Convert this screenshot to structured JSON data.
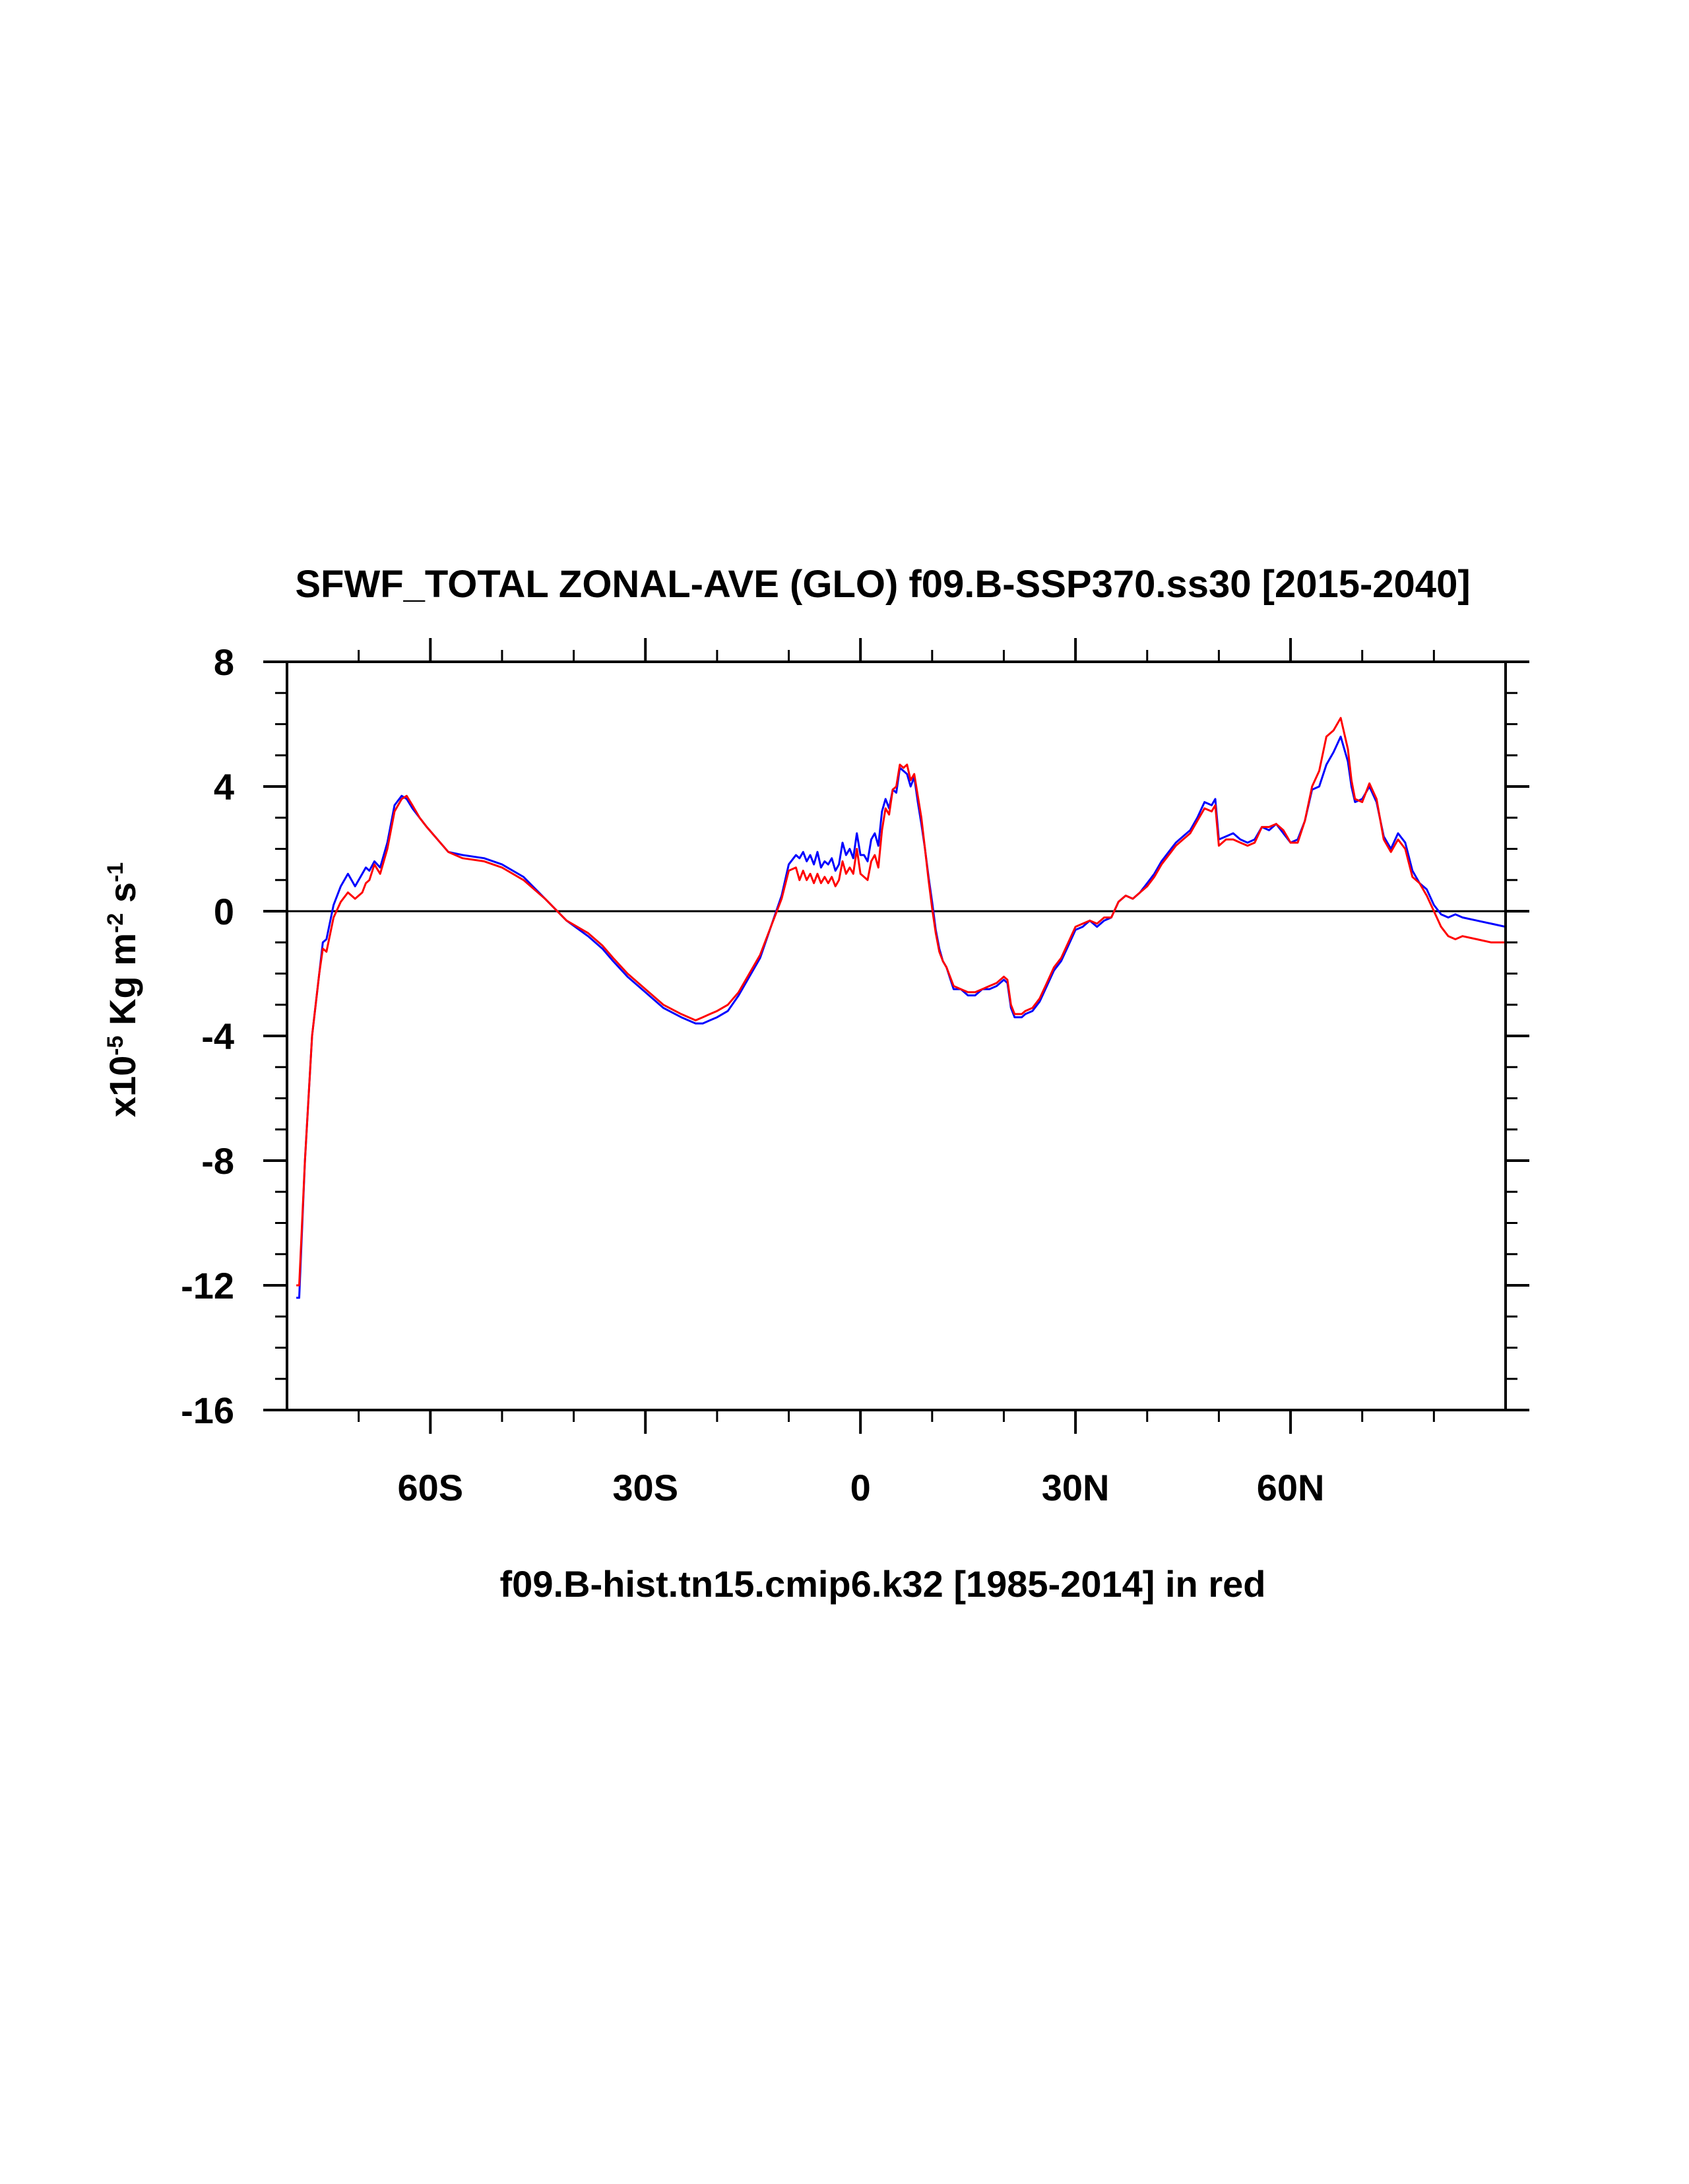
{
  "chart_data": {
    "type": "line",
    "title": "SFWF_TOTAL ZONAL-AVE (GLO) f09.B-SSP370.ss30 [2015-2040]",
    "xlabel": "f09.B-hist.tn15.cmip6.k32 [1985-2014] in red",
    "ylabel": {
      "prefix": "x10",
      "exp1": "-5",
      "mid": " Kg m",
      "exp2": "-2",
      "mid2": " s",
      "exp3": "-1"
    },
    "xlim": [
      -80,
      90
    ],
    "ylim": [
      -16,
      8
    ],
    "xticks": [
      {
        "value": -60,
        "label": "60S"
      },
      {
        "value": -30,
        "label": "30S"
      },
      {
        "value": 0,
        "label": "0"
      },
      {
        "value": 30,
        "label": "30N"
      },
      {
        "value": 60,
        "label": "60N"
      }
    ],
    "yticks": [
      {
        "value": 8,
        "label": "8"
      },
      {
        "value": 4,
        "label": "4"
      },
      {
        "value": 0,
        "label": "0"
      },
      {
        "value": -4,
        "label": "-4"
      },
      {
        "value": -8,
        "label": "-8"
      },
      {
        "value": -12,
        "label": "-12"
      },
      {
        "value": -16,
        "label": "-16"
      }
    ],
    "zero_line": true,
    "series": [
      {
        "color": "#0000ff",
        "x": [
          -78.7,
          -78.3,
          -77.5,
          -76.5,
          -75.5,
          -75.0,
          -74.5,
          -73.5,
          -72.5,
          -71.5,
          -70.5,
          -69.5,
          -69.0,
          -68.5,
          -67.8,
          -67.0,
          -66.0,
          -65.0,
          -64.0,
          -63.3,
          -62.5,
          -61.5,
          -60.5,
          -59.0,
          -57.5,
          -55.5,
          -52.5,
          -50.0,
          -47.0,
          -44.0,
          -41.0,
          -38.0,
          -36.0,
          -34.5,
          -32.5,
          -30.0,
          -27.5,
          -25.0,
          -23.0,
          -22.0,
          -21.0,
          -20.0,
          -18.5,
          -17.0,
          -15.5,
          -14.0,
          -12.5,
          -11.0,
          -10.0,
          -9.0,
          -8.5,
          -8.0,
          -7.5,
          -7.0,
          -6.5,
          -6.0,
          -5.5,
          -5.0,
          -4.5,
          -4.0,
          -3.5,
          -3.0,
          -2.5,
          -2.0,
          -1.5,
          -1.0,
          -0.5,
          0.0,
          0.5,
          1.0,
          1.5,
          2.0,
          2.5,
          3.0,
          3.5,
          4.0,
          4.5,
          5.0,
          5.5,
          6.0,
          6.5,
          7.0,
          7.5,
          8.0,
          8.5,
          9.0,
          9.5,
          10.0,
          10.5,
          11.0,
          11.5,
          12.0,
          13.0,
          14.0,
          15.0,
          16.0,
          17.0,
          18.0,
          19.0,
          20.0,
          20.5,
          21.0,
          21.5,
          22.0,
          22.5,
          23.0,
          24.0,
          25.0,
          26.0,
          27.0,
          28.0,
          29.0,
          30.0,
          31.0,
          32.0,
          33.0,
          34.0,
          35.0,
          36.0,
          37.0,
          38.0,
          39.0,
          40.0,
          41.0,
          42.0,
          43.0,
          44.0,
          45.0,
          46.0,
          47.0,
          48.0,
          49.0,
          49.5,
          50.0,
          51.0,
          52.0,
          53.0,
          54.0,
          55.0,
          56.0,
          57.0,
          58.0,
          59.0,
          60.0,
          61.0,
          62.0,
          63.0,
          64.0,
          65.0,
          66.0,
          67.0,
          68.0,
          68.5,
          69.0,
          70.0,
          71.0,
          72.0,
          73.0,
          74.0,
          75.0,
          76.0,
          77.0,
          78.0,
          79.0,
          80.0,
          81.0,
          82.0,
          83.0,
          84.0,
          86.0,
          88.0,
          90.0
        ],
        "y": [
          -12.4,
          -12.4,
          -8.0,
          -4.0,
          -2.0,
          -1.0,
          -0.9,
          0.2,
          0.8,
          1.2,
          0.8,
          1.2,
          1.4,
          1.3,
          1.6,
          1.4,
          2.2,
          3.4,
          3.7,
          3.6,
          3.3,
          3.0,
          2.7,
          2.3,
          1.9,
          1.8,
          1.7,
          1.5,
          1.1,
          0.4,
          -0.3,
          -0.8,
          -1.2,
          -1.6,
          -2.1,
          -2.6,
          -3.1,
          -3.4,
          -3.6,
          -3.6,
          -3.5,
          -3.4,
          -3.2,
          -2.7,
          -2.1,
          -1.5,
          -0.5,
          0.5,
          1.5,
          1.8,
          1.7,
          1.9,
          1.6,
          1.8,
          1.5,
          1.9,
          1.4,
          1.6,
          1.5,
          1.7,
          1.3,
          1.5,
          2.2,
          1.8,
          2.0,
          1.7,
          2.5,
          1.8,
          1.8,
          1.6,
          2.3,
          2.5,
          2.1,
          3.2,
          3.6,
          3.3,
          3.9,
          3.8,
          4.6,
          4.5,
          4.4,
          4.0,
          4.3,
          3.5,
          2.8,
          2.0,
          1.1,
          0.3,
          -0.6,
          -1.2,
          -1.6,
          -1.8,
          -2.5,
          -2.5,
          -2.7,
          -2.7,
          -2.5,
          -2.5,
          -2.4,
          -2.2,
          -2.3,
          -3.1,
          -3.4,
          -3.4,
          -3.4,
          -3.3,
          -3.2,
          -2.9,
          -2.4,
          -1.9,
          -1.6,
          -1.1,
          -0.6,
          -0.5,
          -0.3,
          -0.5,
          -0.3,
          -0.2,
          0.3,
          0.5,
          0.4,
          0.6,
          0.9,
          1.2,
          1.6,
          1.9,
          2.2,
          2.4,
          2.6,
          3.0,
          3.5,
          3.4,
          3.6,
          2.3,
          2.4,
          2.5,
          2.3,
          2.2,
          2.3,
          2.7,
          2.6,
          2.8,
          2.5,
          2.2,
          2.3,
          2.9,
          3.9,
          4.0,
          4.7,
          5.1,
          5.6,
          4.8,
          4.0,
          3.5,
          3.6,
          4.0,
          3.5,
          2.4,
          2.0,
          2.5,
          2.2,
          1.3,
          0.9,
          0.7,
          0.2,
          -0.1,
          -0.2,
          -0.1,
          -0.2,
          -0.3,
          -0.4,
          -0.5
        ],
        "name": ""
      },
      {
        "color": "#ff0000",
        "x": [
          -78.7,
          -78.3,
          -77.5,
          -76.5,
          -75.5,
          -75.0,
          -74.5,
          -73.5,
          -72.5,
          -71.5,
          -70.5,
          -69.5,
          -69.0,
          -68.5,
          -67.8,
          -67.0,
          -66.0,
          -65.0,
          -64.0,
          -63.3,
          -62.5,
          -61.5,
          -60.5,
          -59.0,
          -57.5,
          -55.5,
          -52.5,
          -50.0,
          -47.0,
          -44.0,
          -41.0,
          -38.0,
          -36.0,
          -34.5,
          -32.5,
          -30.0,
          -27.5,
          -25.0,
          -23.0,
          -22.0,
          -21.0,
          -20.0,
          -18.5,
          -17.0,
          -15.5,
          -14.0,
          -12.5,
          -11.0,
          -10.0,
          -9.0,
          -8.5,
          -8.0,
          -7.5,
          -7.0,
          -6.5,
          -6.0,
          -5.5,
          -5.0,
          -4.5,
          -4.0,
          -3.5,
          -3.0,
          -2.5,
          -2.0,
          -1.5,
          -1.0,
          -0.5,
          0.0,
          0.5,
          1.0,
          1.5,
          2.0,
          2.5,
          3.0,
          3.5,
          4.0,
          4.5,
          5.0,
          5.5,
          6.0,
          6.5,
          7.0,
          7.5,
          8.0,
          8.5,
          9.0,
          9.5,
          10.0,
          10.5,
          11.0,
          11.5,
          12.0,
          13.0,
          14.0,
          15.0,
          16.0,
          17.0,
          18.0,
          19.0,
          20.0,
          20.5,
          21.0,
          21.5,
          22.0,
          22.5,
          23.0,
          24.0,
          25.0,
          26.0,
          27.0,
          28.0,
          29.0,
          30.0,
          31.0,
          32.0,
          33.0,
          34.0,
          35.0,
          36.0,
          37.0,
          38.0,
          39.0,
          40.0,
          41.0,
          42.0,
          43.0,
          44.0,
          45.0,
          46.0,
          47.0,
          48.0,
          49.0,
          49.5,
          50.0,
          51.0,
          52.0,
          53.0,
          54.0,
          55.0,
          56.0,
          57.0,
          58.0,
          59.0,
          60.0,
          61.0,
          62.0,
          63.0,
          64.0,
          65.0,
          66.0,
          67.0,
          68.0,
          68.5,
          69.0,
          70.0,
          71.0,
          72.0,
          73.0,
          74.0,
          75.0,
          76.0,
          77.0,
          78.0,
          79.0,
          80.0,
          81.0,
          82.0,
          83.0,
          84.0,
          86.0,
          88.0,
          90.0
        ],
        "y": [
          -12.0,
          -12.0,
          -8.0,
          -4.0,
          -2.0,
          -1.2,
          -1.3,
          -0.2,
          0.3,
          0.6,
          0.4,
          0.6,
          0.9,
          1.0,
          1.5,
          1.2,
          2.0,
          3.2,
          3.6,
          3.7,
          3.4,
          3.0,
          2.7,
          2.3,
          1.9,
          1.7,
          1.6,
          1.4,
          1.0,
          0.4,
          -0.3,
          -0.7,
          -1.1,
          -1.5,
          -2.0,
          -2.5,
          -3.0,
          -3.3,
          -3.5,
          -3.4,
          -3.3,
          -3.2,
          -3.0,
          -2.6,
          -2.0,
          -1.4,
          -0.5,
          0.4,
          1.3,
          1.4,
          1.0,
          1.3,
          1.0,
          1.2,
          0.9,
          1.2,
          0.9,
          1.1,
          0.9,
          1.1,
          0.8,
          1.0,
          1.6,
          1.2,
          1.4,
          1.2,
          2.0,
          1.2,
          1.1,
          1.0,
          1.6,
          1.8,
          1.4,
          2.6,
          3.3,
          3.1,
          3.9,
          4.0,
          4.7,
          4.6,
          4.7,
          4.2,
          4.4,
          3.7,
          3.0,
          2.0,
          1.0,
          0.1,
          -0.7,
          -1.3,
          -1.6,
          -1.8,
          -2.4,
          -2.5,
          -2.6,
          -2.6,
          -2.5,
          -2.4,
          -2.3,
          -2.1,
          -2.2,
          -3.0,
          -3.3,
          -3.3,
          -3.3,
          -3.2,
          -3.1,
          -2.8,
          -2.3,
          -1.8,
          -1.5,
          -1.0,
          -0.5,
          -0.4,
          -0.3,
          -0.4,
          -0.2,
          -0.2,
          0.3,
          0.5,
          0.4,
          0.6,
          0.8,
          1.1,
          1.5,
          1.8,
          2.1,
          2.3,
          2.5,
          2.9,
          3.3,
          3.2,
          3.4,
          2.1,
          2.3,
          2.3,
          2.2,
          2.1,
          2.2,
          2.7,
          2.7,
          2.8,
          2.6,
          2.2,
          2.2,
          2.9,
          4.0,
          4.5,
          5.6,
          5.8,
          6.2,
          5.2,
          4.2,
          3.6,
          3.5,
          4.1,
          3.6,
          2.3,
          1.9,
          2.3,
          2.0,
          1.1,
          0.9,
          0.5,
          0.0,
          -0.5,
          -0.8,
          -0.9,
          -0.8,
          -0.9,
          -1.0,
          -1.0
        ],
        "name": ""
      }
    ],
    "grid": false,
    "legend": "none"
  }
}
